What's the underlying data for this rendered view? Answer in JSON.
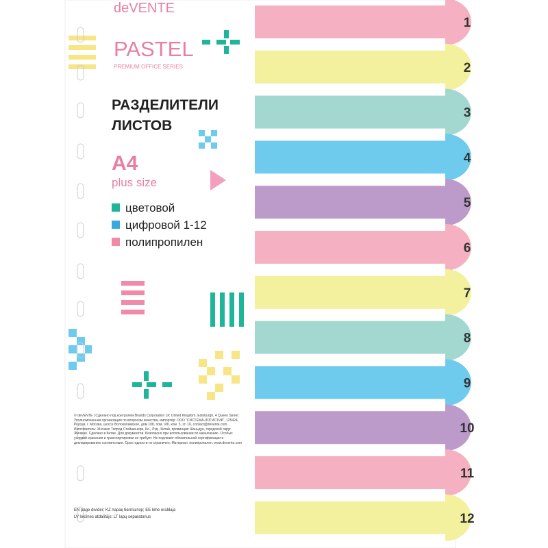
{
  "brand": {
    "name": "deVENTE",
    "line": "PASTEL",
    "series": "PREMIUM OFFICE SERIES"
  },
  "product": {
    "title_lines": [
      "РАЗДЕЛИТЕЛИ",
      "ЛИСТОВ"
    ],
    "format": "A4",
    "size": "plus size"
  },
  "features": [
    {
      "text": "цветовой",
      "color": "#1fb59a"
    },
    {
      "text": "цифровой 1-12",
      "color": "#3aa8e0"
    },
    {
      "text": "полипропилен",
      "color": "#f08aa8"
    }
  ],
  "tabs": [
    {
      "label": "1",
      "color": "#f5b1c1"
    },
    {
      "label": "2",
      "color": "#f3f09e"
    },
    {
      "label": "3",
      "color": "#a2d8d0"
    },
    {
      "label": "4",
      "color": "#6ecbee"
    },
    {
      "label": "5",
      "color": "#bc9bcb"
    },
    {
      "label": "6",
      "color": "#f5b1c1"
    },
    {
      "label": "7",
      "color": "#f3f09e"
    },
    {
      "label": "8",
      "color": "#a2d8d0"
    },
    {
      "label": "9",
      "color": "#6ecbee"
    },
    {
      "label": "10",
      "color": "#bc9bcb"
    },
    {
      "label": "11",
      "color": "#f5b1c1"
    },
    {
      "label": "12",
      "color": "#f3f09e"
    }
  ],
  "legal": {
    "text": "© deVENTE | Сделано под контролем Brands Corporation LP, United Kingdom, Edinburgh, 4 Queen Street. Уполномоченная организация по вопросам качества, импортёр: ООО \"СИСТЕМА-ЛОГИСТИК\", 125424, Россия, г. Москва, шоссе Волоколамское, дом 108, пом. VIII, ком. 5, эт. 10, contact@devente.com. Изготовитель: Жэчжао Топрод Стейшенери, Ко., Лтд., Китай, провинция Шаньдун, городской округ Жичжао. Сделано в Китае. Для документов. Безопасно при использовании по назначению. Особых условий хранения и транспортировки не требует. Не подлежит обязательной сертификации и декларированию соответствия. Срок годности не ограничен. Материал: полипропилен. www.devente.com",
    "langs": [
      "EN page divider;  KZ парақ бөлгіштер;  EE lehe eraldaja",
      "LV lokšnes atdalītājs;  LT lapų separatorius"
    ]
  }
}
